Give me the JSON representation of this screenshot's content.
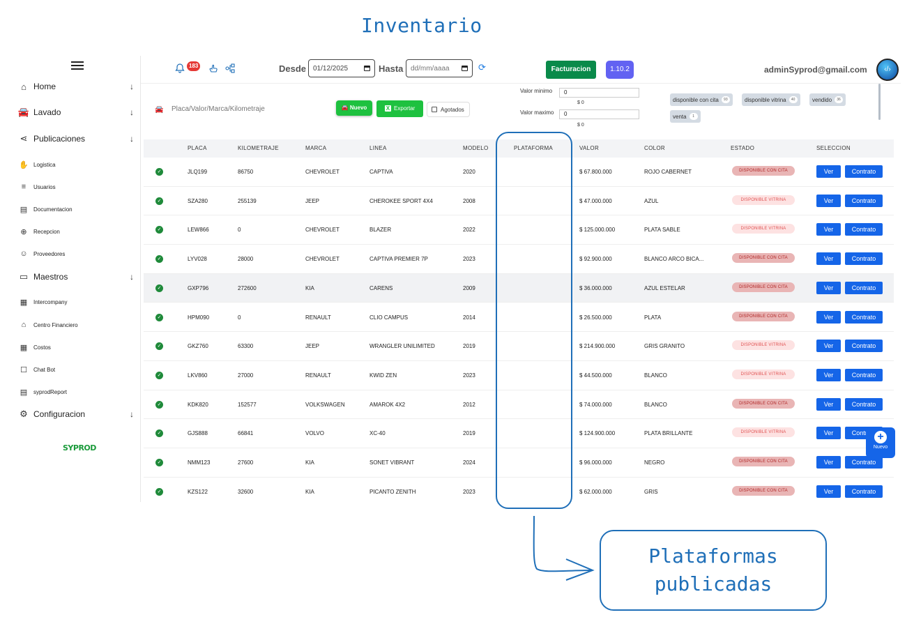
{
  "annotation": {
    "title": "Inventario",
    "callout": "Plataformas publicadas"
  },
  "sidebar": {
    "items": [
      {
        "label": "Home",
        "icon": "home-icon",
        "expandable": true
      },
      {
        "label": "Lavado",
        "icon": "car-icon",
        "expandable": true
      },
      {
        "label": "Publicaciones",
        "icon": "share-icon",
        "expandable": true
      },
      {
        "label": "Logistica",
        "icon": "hand-icon",
        "expandable": false
      },
      {
        "label": "Usuarios",
        "icon": "users-list-icon",
        "expandable": false
      },
      {
        "label": "Documentacion",
        "icon": "document-icon",
        "expandable": false
      },
      {
        "label": "Recepcion",
        "icon": "user-plus-icon",
        "expandable": false
      },
      {
        "label": "Proveedores",
        "icon": "users-icon",
        "expandable": false
      },
      {
        "label": "Maestros",
        "icon": "server-icon",
        "expandable": true
      },
      {
        "label": "Intercompany",
        "icon": "building-icon",
        "expandable": false
      },
      {
        "label": "Centro Financiero",
        "icon": "bank-icon",
        "expandable": false
      },
      {
        "label": "Costos",
        "icon": "calculator-icon",
        "expandable": false
      },
      {
        "label": "Chat Bot",
        "icon": "bot-icon",
        "expandable": false
      },
      {
        "label": "syprodReport",
        "icon": "report-icon",
        "expandable": false
      },
      {
        "label": "Configuracion",
        "icon": "gear-icon",
        "expandable": true
      }
    ],
    "logo": "SYPROD"
  },
  "header": {
    "notifications": "183",
    "desde_label": "Desde",
    "desde_value": "01/12/2025",
    "hasta_label": "Hasta",
    "hasta_placeholder": "dd/mm/aaaa",
    "facturacion": "Facturacion",
    "version": "1.10.2",
    "user_email": "adminSyprod@gmail.com"
  },
  "toolbar": {
    "search_placeholder": "Placa/Valor/Marca/Kilometraje",
    "nuevo": "Nuevo",
    "exportar": "Exportar",
    "agotados": "Agotados",
    "valor_minimo_label": "Valor minimo",
    "valor_minimo_value": "0",
    "valor_minimo_sub": "$ 0",
    "valor_maximo_label": "Valor maximo",
    "valor_maximo_value": "0",
    "valor_maximo_sub": "$ 0",
    "chips": [
      {
        "label": "disponible con cita",
        "count": "93"
      },
      {
        "label": "disponible vitrina",
        "count": "40"
      },
      {
        "label": "vendido",
        "count": "36"
      },
      {
        "label": "venta",
        "count": "1"
      }
    ]
  },
  "table": {
    "headers": [
      "PLACA",
      "KILOMETRAJE",
      "MARCA",
      "LINEA",
      "MODELO",
      "PLATAFORMA",
      "VALOR",
      "COLOR",
      "ESTADO",
      "SELECCION"
    ],
    "rows": [
      {
        "placa": "JLQ199",
        "km": "86750",
        "marca": "CHEVROLET",
        "linea": "CAPTIVA",
        "modelo": "2020",
        "plataforma": "",
        "valor": "$ 67.800.000",
        "color": "ROJO CABERNET",
        "estado": "DISPONIBLE CON CITA",
        "tipo": "cita"
      },
      {
        "placa": "SZA280",
        "km": "255139",
        "marca": "JEEP",
        "linea": "CHEROKEE SPORT 4X4",
        "modelo": "2008",
        "plataforma": "",
        "valor": "$ 47.000.000",
        "color": "AZUL",
        "estado": "DISPONIBLE VITRINA",
        "tipo": "vitrina"
      },
      {
        "placa": "LEW866",
        "km": "0",
        "marca": "CHEVROLET",
        "linea": "BLAZER",
        "modelo": "2022",
        "plataforma": "",
        "valor": "$ 125.000.000",
        "color": "PLATA SABLE",
        "estado": "DISPONIBLE VITRINA",
        "tipo": "vitrina"
      },
      {
        "placa": "LYV028",
        "km": "28000",
        "marca": "CHEVROLET",
        "linea": "CAPTIVA PREMIER 7P",
        "modelo": "2023",
        "plataforma": "",
        "valor": "$ 92.900.000",
        "color": "BLANCO ARCO BICA...",
        "estado": "DISPONIBLE CON CITA",
        "tipo": "cita"
      },
      {
        "placa": "GXP796",
        "km": "272600",
        "marca": "KIA",
        "linea": "CARENS",
        "modelo": "2009",
        "plataforma": "",
        "valor": "$ 36.000.000",
        "color": "AZUL ESTELAR",
        "estado": "DISPONIBLE CON CITA",
        "tipo": "cita"
      },
      {
        "placa": "HPM090",
        "km": "0",
        "marca": "RENAULT",
        "linea": "CLIO CAMPUS",
        "modelo": "2014",
        "plataforma": "",
        "valor": "$ 26.500.000",
        "color": "PLATA",
        "estado": "DISPONIBLE CON CITA",
        "tipo": "cita"
      },
      {
        "placa": "GKZ760",
        "km": "63300",
        "marca": "JEEP",
        "linea": "WRANGLER UNILIMITED",
        "modelo": "2019",
        "plataforma": "",
        "valor": "$ 214.900.000",
        "color": "GRIS GRANITO",
        "estado": "DISPONIBLE VITRINA",
        "tipo": "vitrina"
      },
      {
        "placa": "LKV860",
        "km": "27000",
        "marca": "RENAULT",
        "linea": "KWID ZEN",
        "modelo": "2023",
        "plataforma": "",
        "valor": "$ 44.500.000",
        "color": "BLANCO",
        "estado": "DISPONIBLE VITRINA",
        "tipo": "vitrina"
      },
      {
        "placa": "KDK820",
        "km": "152577",
        "marca": "VOLKSWAGEN",
        "linea": "AMAROK 4X2",
        "modelo": "2012",
        "plataforma": "",
        "valor": "$ 74.000.000",
        "color": "BLANCO",
        "estado": "DISPONIBLE CON CITA",
        "tipo": "cita"
      },
      {
        "placa": "GJS888",
        "km": "66841",
        "marca": "VOLVO",
        "linea": "XC-40",
        "modelo": "2019",
        "plataforma": "",
        "valor": "$ 124.900.000",
        "color": "PLATA BRILLANTE",
        "estado": "DISPONIBLE VITRINA",
        "tipo": "vitrina"
      },
      {
        "placa": "NMM123",
        "km": "27600",
        "marca": "KIA",
        "linea": "SONET VIBRANT",
        "modelo": "2024",
        "plataforma": "",
        "valor": "$ 96.000.000",
        "color": "NEGRO",
        "estado": "DISPONIBLE CON CITA",
        "tipo": "cita"
      },
      {
        "placa": "KZS122",
        "km": "32600",
        "marca": "KIA",
        "linea": "PICANTO ZENITH",
        "modelo": "2023",
        "plataforma": "",
        "valor": "$ 62.000.000",
        "color": "GRIS",
        "estado": "DISPONIBLE CON CITA",
        "tipo": "cita"
      }
    ],
    "ver_label": "Ver",
    "contrato_label": "Contrato"
  },
  "fab": {
    "label": "Nuevo"
  },
  "colors": {
    "accent": "#1565e8",
    "success": "#1ec13f",
    "annotation": "#1f6fb8"
  }
}
